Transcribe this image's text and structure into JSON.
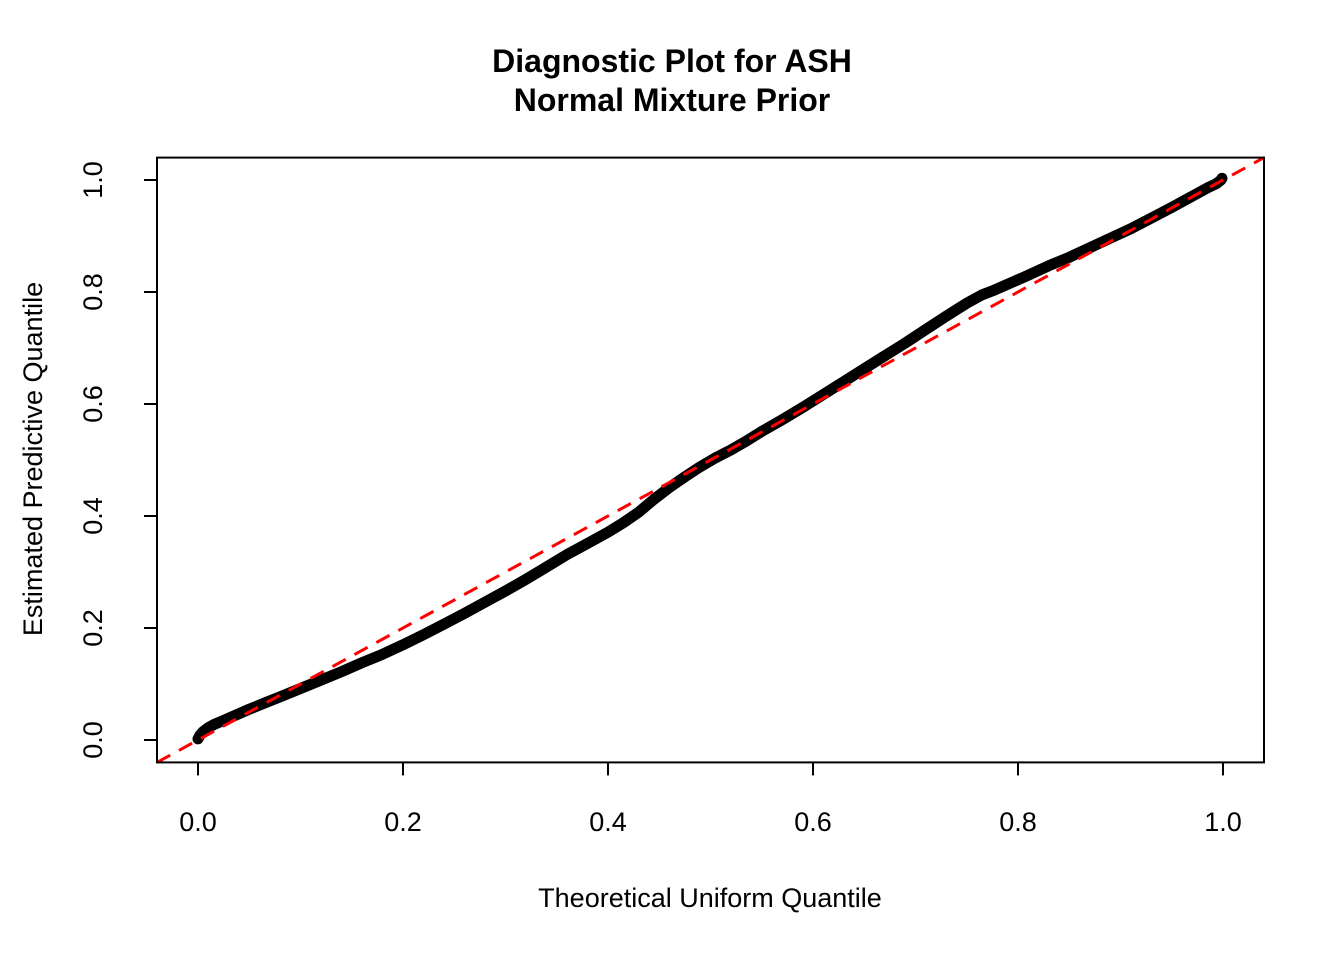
{
  "title": {
    "line1": "Diagnostic Plot for ASH",
    "line2": "Normal Mixture Prior"
  },
  "chart_data": {
    "type": "scatter",
    "title": "Diagnostic Plot for ASH\nNormal Mixture Prior",
    "xlabel": "Theoretical Uniform Quantile",
    "ylabel": "Estimated Predictive Quantile",
    "xlim": [
      -0.04,
      1.04
    ],
    "ylim": [
      -0.04,
      1.04
    ],
    "x_ticks": [
      0.0,
      0.2,
      0.4,
      0.6,
      0.8,
      1.0
    ],
    "y_ticks": [
      0.0,
      0.2,
      0.4,
      0.6,
      0.8,
      1.0
    ],
    "grid": false,
    "legend": "none",
    "colors": {
      "curve": "#000000",
      "reference_line": "#FF0000",
      "frame": "#000000"
    },
    "series": [
      {
        "name": "estimated-predictive-quantiles",
        "type": "thick-point-curve",
        "color": "#000000",
        "points": [
          [
            0.0,
            0.002
          ],
          [
            0.002,
            0.009
          ],
          [
            0.005,
            0.015
          ],
          [
            0.01,
            0.022
          ],
          [
            0.016,
            0.028
          ],
          [
            0.025,
            0.035
          ],
          [
            0.035,
            0.043
          ],
          [
            0.05,
            0.055
          ],
          [
            0.065,
            0.066
          ],
          [
            0.08,
            0.077
          ],
          [
            0.1,
            0.092
          ],
          [
            0.12,
            0.107
          ],
          [
            0.14,
            0.122
          ],
          [
            0.16,
            0.138
          ],
          [
            0.18,
            0.153
          ],
          [
            0.2,
            0.17
          ],
          [
            0.22,
            0.188
          ],
          [
            0.24,
            0.207
          ],
          [
            0.26,
            0.226
          ],
          [
            0.28,
            0.246
          ],
          [
            0.3,
            0.266
          ],
          [
            0.32,
            0.287
          ],
          [
            0.34,
            0.309
          ],
          [
            0.36,
            0.331
          ],
          [
            0.38,
            0.351
          ],
          [
            0.4,
            0.371
          ],
          [
            0.415,
            0.388
          ],
          [
            0.43,
            0.407
          ],
          [
            0.445,
            0.43
          ],
          [
            0.46,
            0.451
          ],
          [
            0.475,
            0.47
          ],
          [
            0.49,
            0.488
          ],
          [
            0.505,
            0.504
          ],
          [
            0.52,
            0.518
          ],
          [
            0.535,
            0.534
          ],
          [
            0.55,
            0.551
          ],
          [
            0.57,
            0.572
          ],
          [
            0.59,
            0.594
          ],
          [
            0.61,
            0.617
          ],
          [
            0.63,
            0.64
          ],
          [
            0.65,
            0.663
          ],
          [
            0.67,
            0.686
          ],
          [
            0.69,
            0.709
          ],
          [
            0.71,
            0.733
          ],
          [
            0.73,
            0.757
          ],
          [
            0.75,
            0.78
          ],
          [
            0.765,
            0.795
          ],
          [
            0.775,
            0.802
          ],
          [
            0.79,
            0.814
          ],
          [
            0.81,
            0.83
          ],
          [
            0.83,
            0.847
          ],
          [
            0.85,
            0.862
          ],
          [
            0.87,
            0.879
          ],
          [
            0.89,
            0.896
          ],
          [
            0.91,
            0.913
          ],
          [
            0.93,
            0.932
          ],
          [
            0.95,
            0.951
          ],
          [
            0.97,
            0.971
          ],
          [
            0.985,
            0.986
          ],
          [
            0.994,
            0.994
          ],
          [
            0.998,
            1.0
          ],
          [
            0.999,
            1.003
          ]
        ]
      },
      {
        "name": "identity-reference-line",
        "type": "line",
        "style": "dashed",
        "color": "#FF0000",
        "points": [
          [
            -0.04,
            -0.04
          ],
          [
            1.04,
            1.04
          ]
        ]
      }
    ]
  }
}
